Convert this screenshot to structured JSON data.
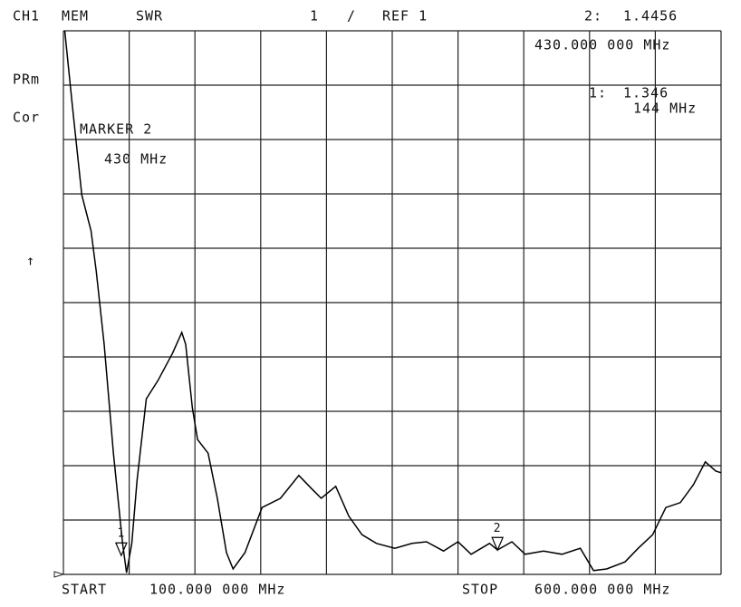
{
  "chart_data": {
    "type": "line",
    "header": {
      "channel": "CH1",
      "mode": "MEM",
      "format": "SWR",
      "scale": "1",
      "separator": "/",
      "reference": "REF 1"
    },
    "side_labels": {
      "parameter": "PRm",
      "correction": "Cor",
      "reference_arrow": "↑"
    },
    "annotations": {
      "marker_title": "MARKER 2",
      "marker_frequency": "430 MHz"
    },
    "footer": {
      "start_label": "START",
      "start_value": "100.000 000 MHz",
      "stop_label": "STOP",
      "stop_value": "600.000 000 MHz"
    },
    "markers": [
      {
        "label": "1",
        "readout_label": "1:",
        "x": 144,
        "value": 1.346,
        "frequency": "144 MHz"
      },
      {
        "label": "2",
        "readout_label": "2:",
        "x": 430,
        "value": 1.4456,
        "frequency": "430.000 000 MHz"
      }
    ],
    "color": "#000000",
    "x": [
      101,
      107,
      114,
      121,
      125,
      131,
      138,
      145,
      148,
      152,
      156,
      163,
      172,
      183,
      190,
      193,
      198,
      202,
      210,
      217,
      224,
      229,
      238,
      251,
      265,
      279,
      289,
      296,
      307,
      317,
      327,
      338,
      352,
      365,
      376,
      389,
      400,
      410,
      424,
      430,
      441,
      451,
      465,
      479,
      493,
      503,
      513,
      527,
      537,
      548,
      558,
      569,
      579,
      588,
      596,
      600
    ],
    "values": [
      11.0,
      9.57,
      7.98,
      7.32,
      6.57,
      5.23,
      3.23,
      1.57,
      1.03,
      1.57,
      2.73,
      4.23,
      4.57,
      5.07,
      5.45,
      5.23,
      4.07,
      3.48,
      3.23,
      2.4,
      1.4,
      1.1,
      1.4,
      2.23,
      2.4,
      2.82,
      2.57,
      2.4,
      2.62,
      2.07,
      1.73,
      1.57,
      1.48,
      1.57,
      1.6,
      1.43,
      1.6,
      1.37,
      1.57,
      1.45,
      1.6,
      1.37,
      1.43,
      1.37,
      1.48,
      1.07,
      1.1,
      1.23,
      1.48,
      1.73,
      2.23,
      2.32,
      2.65,
      3.07,
      2.9,
      2.87
    ],
    "xlim": [
      100,
      600
    ],
    "ylim": [
      1,
      11
    ],
    "xticks": [
      100,
      150,
      200,
      250,
      300,
      350,
      400,
      450,
      500,
      550,
      600
    ],
    "yticks": [
      1,
      2,
      3,
      4,
      5,
      6,
      7,
      8,
      9,
      10,
      11
    ],
    "grid": true
  }
}
